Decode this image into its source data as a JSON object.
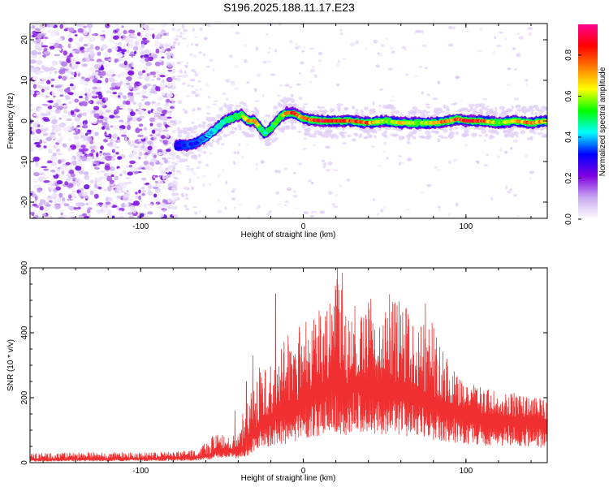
{
  "title": "S196.2025.188.11.17.E23",
  "chart_data": [
    {
      "type": "heatmap",
      "xlabel": "Height of straight line (km)",
      "ylabel": "Frequency (Hz)",
      "xlim": [
        -168,
        150
      ],
      "ylim": [
        -24,
        24
      ],
      "x_ticks": [
        -100,
        0,
        100
      ],
      "y_ticks": [
        -20,
        -10,
        0,
        10,
        20
      ],
      "colorbar": {
        "label": "Normalized spectral amplitude",
        "ticks": [
          0.0,
          0.2,
          0.4,
          0.6,
          0.8
        ],
        "range": [
          0,
          0.95
        ],
        "colors": [
          "#ffffff",
          "#c8a8f0",
          "#8000e0",
          "#0000ff",
          "#00ffff",
          "#00ff00",
          "#ffff00",
          "#ff8000",
          "#ff0000",
          "#ff0090"
        ]
      },
      "noise_region_x": [
        -168,
        -80
      ],
      "ridge": {
        "x": [
          -78,
          -72,
          -66,
          -60,
          -54,
          -48,
          -42,
          -38,
          -34,
          -30,
          -26,
          -24,
          -22,
          -18,
          -14,
          -10,
          -6,
          -2,
          4,
          12,
          20,
          30,
          40,
          50,
          60,
          70,
          80,
          90,
          95,
          100,
          110,
          120,
          130,
          140,
          150
        ],
        "y": [
          -6,
          -6,
          -5.5,
          -4,
          -2,
          0,
          1,
          1.5,
          0,
          0,
          -2,
          -3,
          -2.5,
          -1,
          1,
          2,
          2,
          1,
          0.3,
          0,
          0,
          0,
          -0.5,
          0,
          -0.5,
          -0.5,
          -0.5,
          0,
          0.5,
          0,
          0,
          -0.5,
          0,
          -0.5,
          0
        ],
        "amplitude": [
          0.3,
          0.35,
          0.35,
          0.4,
          0.45,
          0.5,
          0.5,
          0.55,
          0.7,
          0.8,
          0.55,
          0.5,
          0.5,
          0.55,
          0.6,
          0.85,
          0.9,
          0.75,
          0.8,
          0.95,
          0.9,
          0.85,
          0.8,
          0.6,
          0.7,
          0.6,
          0.75,
          0.8,
          0.85,
          0.9,
          0.9,
          0.6,
          0.7,
          0.8,
          0.7
        ]
      }
    },
    {
      "type": "line",
      "xlabel": "Height of straight line (km)",
      "ylabel": "SNR (10 * v/v)",
      "xlim": [
        -168,
        150
      ],
      "ylim": [
        0,
        600
      ],
      "x_ticks": [
        -100,
        0,
        100
      ],
      "y_ticks": [
        0,
        200,
        400,
        600
      ],
      "color": "#f03030",
      "envelope": {
        "x": [
          -168,
          -130,
          -90,
          -65,
          -58,
          -52,
          -46,
          -40,
          -34,
          -30,
          -26,
          -22,
          -18,
          -12,
          -6,
          0,
          6,
          12,
          18,
          22,
          26,
          30,
          36,
          42,
          48,
          54,
          60,
          66,
          72,
          78,
          84,
          90,
          96,
          102,
          110,
          120,
          130,
          140,
          150
        ],
        "base": [
          10,
          12,
          14,
          18,
          24,
          40,
          45,
          35,
          60,
          100,
          130,
          140,
          150,
          160,
          180,
          200,
          230,
          240,
          270,
          250,
          240,
          260,
          260,
          250,
          250,
          240,
          240,
          220,
          210,
          200,
          190,
          180,
          170,
          160,
          150,
          145,
          140,
          135,
          130
        ],
        "peak": [
          30,
          32,
          32,
          40,
          80,
          100,
          90,
          100,
          220,
          280,
          300,
          290,
          320,
          380,
          420,
          440,
          460,
          480,
          520,
          600,
          520,
          490,
          500,
          510,
          530,
          520,
          500,
          470,
          440,
          460,
          380,
          300,
          270,
          250,
          230,
          220,
          215,
          210,
          200
        ]
      },
      "spikes": [
        {
          "x": -42,
          "y": 160
        },
        {
          "x": -35,
          "y": 250
        },
        {
          "x": -31,
          "y": 330
        },
        {
          "x": -17,
          "y": 520
        },
        {
          "x": 21,
          "y": 600
        },
        {
          "x": 24,
          "y": 585
        },
        {
          "x": 75,
          "y": 490
        }
      ]
    }
  ]
}
